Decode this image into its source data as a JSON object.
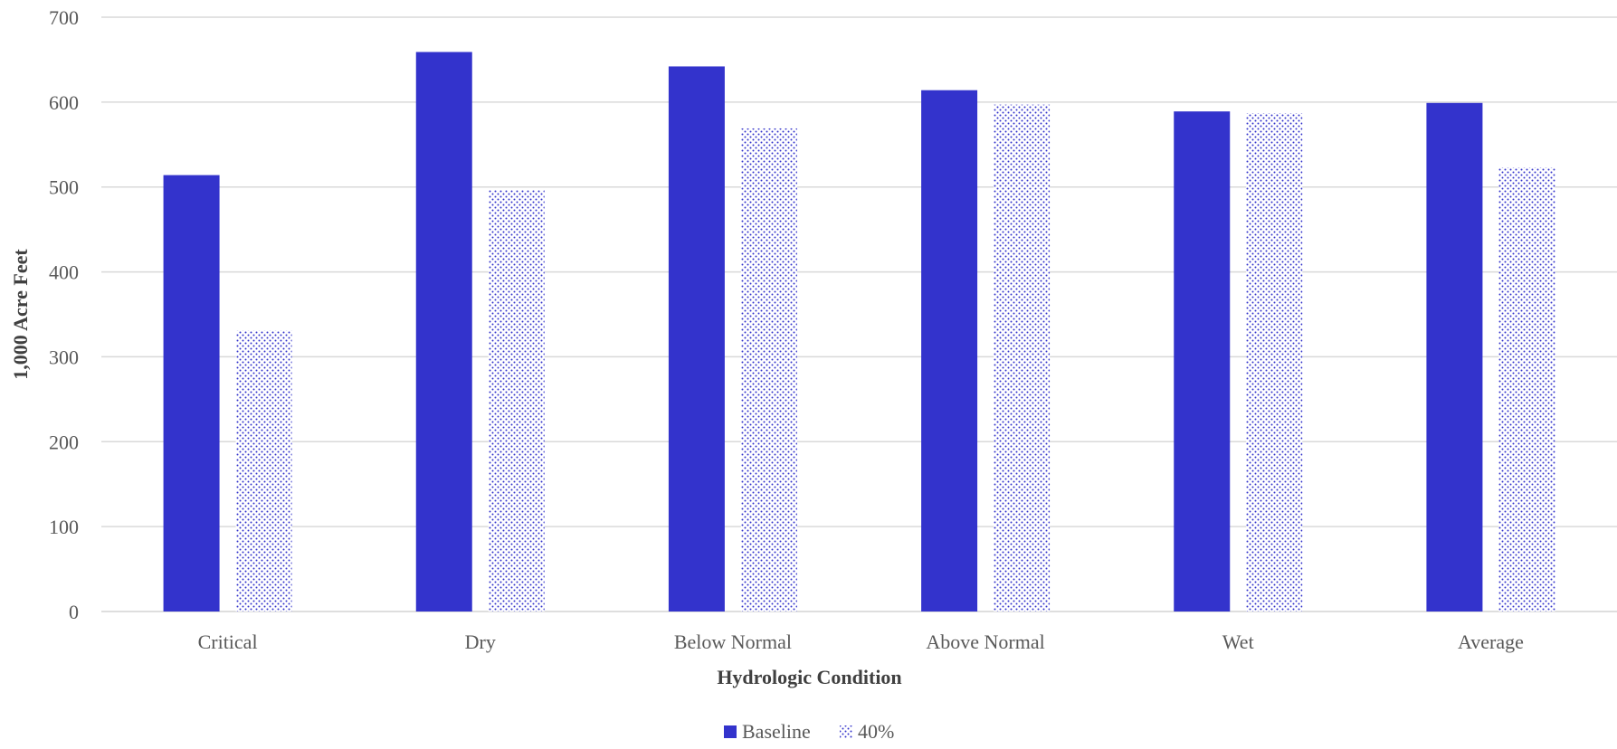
{
  "chart_data": {
    "type": "bar",
    "title": "",
    "xlabel": "Hydrologic Condition",
    "ylabel": "1,000 Acre Feet",
    "categories": [
      "Critical",
      "Dry",
      "Below Normal",
      "Above Normal",
      "Wet",
      "Average"
    ],
    "series": [
      {
        "name": "Baseline",
        "values": [
          514,
          659,
          642,
          614,
          589,
          599
        ],
        "color": "#3333cc",
        "fill": "solid"
      },
      {
        "name": "40%",
        "values": [
          331,
          497,
          569,
          597,
          587,
          523
        ],
        "color": "#3333cc",
        "fill": "dotted"
      }
    ],
    "ylim": [
      0,
      700
    ],
    "yticks": [
      0,
      100,
      200,
      300,
      400,
      500,
      600,
      700
    ],
    "grid": true,
    "gridColor": "#d9d9d9",
    "legend": "bottom-center"
  }
}
